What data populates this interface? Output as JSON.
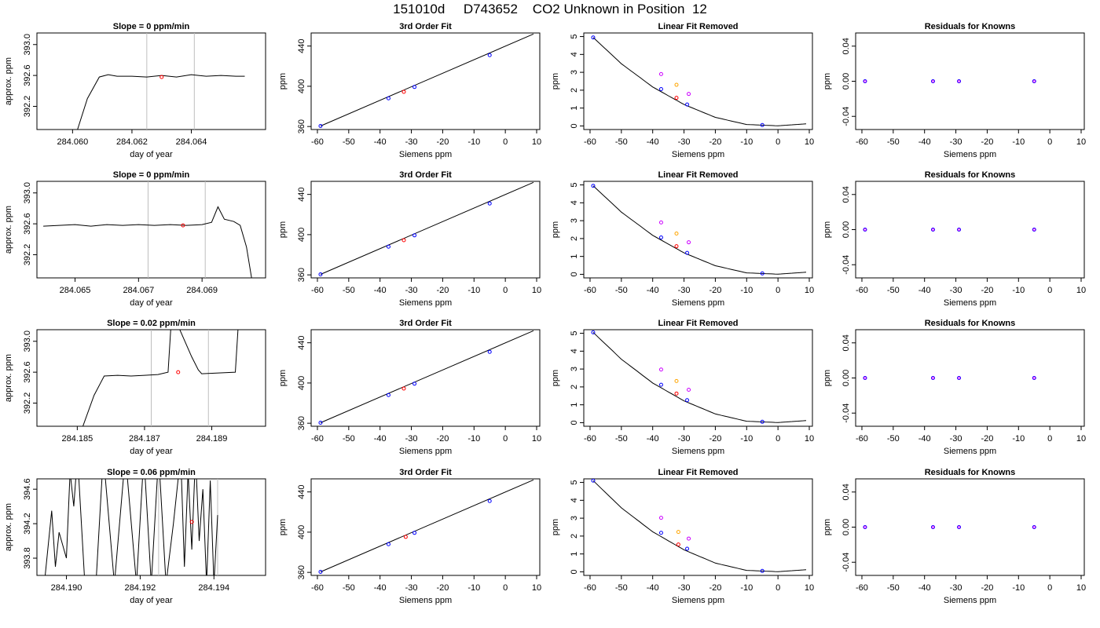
{
  "page_title": "151010d     D743652    CO2 Unknown in Position  12",
  "colors": {
    "standard": "#0000ff",
    "unknown": "#ff0000",
    "high": "#cc00ff",
    "low": "#ffa500",
    "guide": "#bebebe",
    "line": "#000000"
  },
  "chart_data": [
    {
      "type": "line",
      "row": 0,
      "kind": "trace",
      "title": "Slope =  0  ppm/min",
      "xlabel": "day of year",
      "ylabel": "approx. ppm",
      "xlim": [
        284.0588,
        284.0665
      ],
      "ylim": [
        391.9,
        393.15
      ],
      "xticks": [
        284.06,
        284.062,
        284.064
      ],
      "xticklabels": [
        "284.060",
        "284.062",
        "284.064"
      ],
      "yticks": [
        392.2,
        392.6,
        393.0
      ],
      "yticklabels": [
        "392.2",
        "392.6",
        "393.0"
      ],
      "vlines": [
        284.0625,
        284.0641
      ],
      "x": [
        284.06,
        284.0605,
        284.0609,
        284.0612,
        284.0615,
        284.062,
        284.0625,
        284.063,
        284.0635,
        284.064,
        284.0645,
        284.065,
        284.0655,
        284.0658
      ],
      "y": [
        391.7,
        392.3,
        392.58,
        392.61,
        392.59,
        392.59,
        392.58,
        392.6,
        392.58,
        392.61,
        392.59,
        392.6,
        392.59,
        392.59
      ],
      "marker": {
        "x": 284.063,
        "y": 392.58
      }
    },
    {
      "type": "scatter",
      "row": 0,
      "kind": "fit",
      "title": "3rd Order Fit",
      "xlabel": "Siemens ppm",
      "ylabel": "ppm",
      "xlim": [
        -62,
        11
      ],
      "ylim": [
        357,
        453
      ],
      "xticks": [
        -60,
        -50,
        -40,
        -30,
        -20,
        -10,
        0,
        10
      ],
      "yticks": [
        360,
        400,
        440
      ],
      "yticklabels": [
        "360",
        "400",
        "440"
      ],
      "line": {
        "x": [
          -59,
          9
        ],
        "y": [
          360.5,
          452
        ]
      },
      "standards": {
        "x": [
          -59,
          -37.3,
          -29,
          -5
        ],
        "y": [
          360.5,
          388,
          399.3,
          431
        ]
      },
      "unknown": {
        "x": [
          -32.4
        ],
        "y": [
          394.5
        ]
      }
    },
    {
      "type": "scatter",
      "row": 0,
      "kind": "removed",
      "title": "Linear Fit Removed",
      "xlabel": "Siemens ppm",
      "ylabel": "ppm",
      "xlim": [
        -62,
        11
      ],
      "ylim": [
        -0.2,
        5.2
      ],
      "xticks": [
        -60,
        -50,
        -40,
        -30,
        -20,
        -10,
        0,
        10
      ],
      "yticks": [
        0,
        1,
        2,
        3,
        4,
        5
      ],
      "yticklabels": [
        "0",
        "1",
        "2",
        "3",
        "4",
        "5"
      ],
      "curve": {
        "x": [
          -59,
          -50,
          -40,
          -30,
          -20,
          -10,
          0,
          9
        ],
        "y": [
          4.95,
          3.48,
          2.18,
          1.2,
          0.48,
          0.08,
          0.01,
          0.12
        ]
      },
      "standards": {
        "x": [
          -59,
          -37.3,
          -29,
          -5
        ],
        "y": [
          4.95,
          2.06,
          1.2,
          0.05
        ]
      },
      "unknown": {
        "x": [
          -32.4
        ],
        "y": [
          1.57
        ]
      },
      "high": {
        "x": [
          -37.3,
          -28.5
        ],
        "y": [
          2.9,
          1.79
        ]
      },
      "low": {
        "x": [
          -32.4
        ],
        "y": [
          2.3
        ]
      }
    },
    {
      "type": "scatter",
      "row": 0,
      "kind": "residuals",
      "title": "Residuals for Knowns",
      "xlabel": "Siemens ppm",
      "ylabel": "ppm",
      "xlim": [
        -62,
        11
      ],
      "ylim": [
        -0.055,
        0.055
      ],
      "xticks": [
        -60,
        -50,
        -40,
        -30,
        -20,
        -10,
        0,
        10
      ],
      "yticks": [
        -0.04,
        0.0,
        0.04
      ],
      "yticklabels": [
        "-0.04",
        "0.00",
        "0.04"
      ],
      "points": {
        "x": [
          -59,
          -37.3,
          -29,
          -5
        ],
        "y": [
          0,
          0,
          0,
          0
        ]
      }
    },
    {
      "type": "line",
      "row": 1,
      "kind": "trace",
      "title": "Slope =  0  ppm/min",
      "xlabel": "day of year",
      "ylabel": "approx. ppm",
      "xlim": [
        284.0638,
        284.071
      ],
      "ylim": [
        391.9,
        393.15
      ],
      "xticks": [
        284.065,
        284.067,
        284.069
      ],
      "xticklabels": [
        "284.065",
        "284.067",
        "284.069"
      ],
      "yticks": [
        392.2,
        392.6,
        393.0
      ],
      "yticklabels": [
        "392.2",
        "392.6",
        "393.0"
      ],
      "vlines": [
        284.0673,
        284.0691
      ],
      "x": [
        284.064,
        284.0645,
        284.065,
        284.0655,
        284.066,
        284.0665,
        284.067,
        284.0675,
        284.068,
        284.0685,
        284.069,
        284.0693,
        284.0695,
        284.0697,
        284.07,
        284.0702,
        284.0704,
        284.0706
      ],
      "y": [
        392.57,
        392.58,
        392.59,
        392.57,
        392.59,
        392.58,
        392.59,
        392.58,
        392.59,
        392.58,
        392.59,
        392.62,
        392.82,
        392.66,
        392.63,
        392.58,
        392.3,
        391.8
      ],
      "marker": {
        "x": 284.0684,
        "y": 392.58
      }
    },
    {
      "type": "scatter",
      "row": 1,
      "kind": "fit",
      "title": "3rd Order Fit",
      "xlabel": "Siemens ppm",
      "ylabel": "ppm",
      "xlim": [
        -62,
        11
      ],
      "ylim": [
        357,
        453
      ],
      "xticks": [
        -60,
        -50,
        -40,
        -30,
        -20,
        -10,
        0,
        10
      ],
      "yticks": [
        360,
        400,
        440
      ],
      "yticklabels": [
        "360",
        "400",
        "440"
      ],
      "line": {
        "x": [
          -59,
          9
        ],
        "y": [
          360.5,
          452
        ]
      },
      "standards": {
        "x": [
          -59,
          -37.3,
          -29,
          -5
        ],
        "y": [
          360.5,
          388,
          399.3,
          431
        ]
      },
      "unknown": {
        "x": [
          -32.4
        ],
        "y": [
          394.5
        ]
      }
    },
    {
      "type": "scatter",
      "row": 1,
      "kind": "removed",
      "title": "Linear Fit Removed",
      "xlabel": "Siemens ppm",
      "ylabel": "ppm",
      "xlim": [
        -62,
        11
      ],
      "ylim": [
        -0.2,
        5.2
      ],
      "xticks": [
        -60,
        -50,
        -40,
        -30,
        -20,
        -10,
        0,
        10
      ],
      "yticks": [
        0,
        1,
        2,
        3,
        4,
        5
      ],
      "yticklabels": [
        "0",
        "1",
        "2",
        "3",
        "4",
        "5"
      ],
      "curve": {
        "x": [
          -59,
          -50,
          -40,
          -30,
          -20,
          -10,
          0,
          9
        ],
        "y": [
          4.95,
          3.48,
          2.18,
          1.2,
          0.48,
          0.08,
          0.01,
          0.12
        ]
      },
      "standards": {
        "x": [
          -59,
          -37.3,
          -29,
          -5
        ],
        "y": [
          4.95,
          2.06,
          1.2,
          0.05
        ]
      },
      "unknown": {
        "x": [
          -32.4
        ],
        "y": [
          1.57
        ]
      },
      "high": {
        "x": [
          -37.3,
          -28.5
        ],
        "y": [
          2.9,
          1.79
        ]
      },
      "low": {
        "x": [
          -32.4
        ],
        "y": [
          2.28
        ]
      }
    },
    {
      "type": "scatter",
      "row": 1,
      "kind": "residuals",
      "title": "Residuals for Knowns",
      "xlabel": "Siemens ppm",
      "ylabel": "ppm",
      "xlim": [
        -62,
        11
      ],
      "ylim": [
        -0.055,
        0.055
      ],
      "xticks": [
        -60,
        -50,
        -40,
        -30,
        -20,
        -10,
        0,
        10
      ],
      "yticks": [
        -0.04,
        0.0,
        0.04
      ],
      "yticklabels": [
        "-0.04",
        "0.00",
        "0.04"
      ],
      "points": {
        "x": [
          -59,
          -37.3,
          -29,
          -5
        ],
        "y": [
          0,
          0,
          0,
          0
        ]
      }
    },
    {
      "type": "line",
      "row": 2,
      "kind": "trace",
      "title": "Slope =  0.02  ppm/min",
      "xlabel": "day of year",
      "ylabel": "approx. ppm",
      "xlim": [
        284.1838,
        284.1906
      ],
      "ylim": [
        391.9,
        393.15
      ],
      "xticks": [
        284.185,
        284.187,
        284.189
      ],
      "xticklabels": [
        "284.185",
        "284.187",
        "284.189"
      ],
      "yticks": [
        392.2,
        392.6,
        393.0
      ],
      "yticklabels": [
        "392.2",
        "392.6",
        "393.0"
      ],
      "vlines": [
        284.1872,
        284.1889
      ],
      "x": [
        284.185,
        284.1855,
        284.1858,
        284.1862,
        284.1866,
        284.187,
        284.1874,
        284.1877,
        284.1878,
        284.188,
        284.1884,
        284.1886,
        284.1887,
        284.1892,
        284.1897,
        284.1898
      ],
      "y": [
        391.7,
        392.3,
        392.55,
        392.56,
        392.55,
        392.56,
        392.57,
        392.6,
        393.3,
        393.2,
        392.8,
        392.63,
        392.58,
        392.59,
        392.6,
        393.3
      ],
      "marker": {
        "x": 284.188,
        "y": 392.6
      }
    },
    {
      "type": "scatter",
      "row": 2,
      "kind": "fit",
      "title": "3rd Order Fit",
      "xlabel": "Siemens ppm",
      "ylabel": "ppm",
      "xlim": [
        -62,
        11
      ],
      "ylim": [
        357,
        453
      ],
      "xticks": [
        -60,
        -50,
        -40,
        -30,
        -20,
        -10,
        0,
        10
      ],
      "yticks": [
        360,
        400,
        440
      ],
      "yticklabels": [
        "360",
        "400",
        "440"
      ],
      "line": {
        "x": [
          -59,
          9
        ],
        "y": [
          360.5,
          452
        ]
      },
      "standards": {
        "x": [
          -59,
          -37.3,
          -29,
          -5
        ],
        "y": [
          360.5,
          388,
          399.3,
          431
        ]
      },
      "unknown": {
        "x": [
          -32.4
        ],
        "y": [
          394.5
        ]
      }
    },
    {
      "type": "scatter",
      "row": 2,
      "kind": "removed",
      "title": "Linear Fit Removed",
      "xlabel": "Siemens ppm",
      "ylabel": "ppm",
      "xlim": [
        -62,
        11
      ],
      "ylim": [
        -0.2,
        5.2
      ],
      "xticks": [
        -60,
        -50,
        -40,
        -30,
        -20,
        -10,
        0,
        10
      ],
      "yticks": [
        0,
        1,
        2,
        3,
        4,
        5
      ],
      "yticklabels": [
        "0",
        "1",
        "2",
        "3",
        "4",
        "5"
      ],
      "curve": {
        "x": [
          -59,
          -50,
          -40,
          -30,
          -20,
          -10,
          0,
          9
        ],
        "y": [
          5.05,
          3.55,
          2.22,
          1.22,
          0.49,
          0.08,
          0.01,
          0.12
        ]
      },
      "standards": {
        "x": [
          -59,
          -37.3,
          -29,
          -5
        ],
        "y": [
          5.05,
          2.12,
          1.26,
          0.05
        ]
      },
      "unknown": {
        "x": [
          -32.4
        ],
        "y": [
          1.63
        ]
      },
      "high": {
        "x": [
          -37.3,
          -28.5
        ],
        "y": [
          2.97,
          1.84
        ]
      },
      "low": {
        "x": [
          -32.4
        ],
        "y": [
          2.33
        ]
      }
    },
    {
      "type": "scatter",
      "row": 2,
      "kind": "residuals",
      "title": "Residuals for Knowns",
      "xlabel": "Siemens ppm",
      "ylabel": "ppm",
      "xlim": [
        -62,
        11
      ],
      "ylim": [
        -0.055,
        0.055
      ],
      "xticks": [
        -60,
        -50,
        -40,
        -30,
        -20,
        -10,
        0,
        10
      ],
      "yticks": [
        -0.04,
        0.0,
        0.04
      ],
      "yticklabels": [
        "-0.04",
        "0.00",
        "0.04"
      ],
      "points": {
        "x": [
          -59,
          -37.3,
          -29,
          -5
        ],
        "y": [
          0,
          0,
          0,
          0
        ]
      }
    },
    {
      "type": "line",
      "row": 3,
      "kind": "trace",
      "title": "Slope =  0.06  ppm/min",
      "xlabel": "day of year",
      "ylabel": "approx. ppm",
      "xlim": [
        284.1892,
        284.1954
      ],
      "ylim": [
        393.6,
        394.72
      ],
      "xticks": [
        284.19,
        284.192,
        284.194
      ],
      "xticklabels": [
        "284.190",
        "284.192",
        "284.194"
      ],
      "yticks": [
        393.8,
        394.2,
        394.6
      ],
      "yticklabels": [
        "393.8",
        "394.2",
        "394.6"
      ],
      "vlines": [
        284.1925,
        284.1941
      ],
      "x": [
        284.1894,
        284.1896,
        284.1897,
        284.1898,
        284.19,
        284.1901,
        284.1902,
        284.1903,
        284.1905,
        284.1908,
        284.191,
        284.1913,
        284.1916,
        284.1919,
        284.1921,
        284.1923,
        284.1925,
        284.1927,
        284.1929,
        284.1931,
        284.1932,
        284.1933,
        284.1934,
        284.1935,
        284.1936,
        284.1937,
        284.1938,
        284.1939,
        284.194,
        284.1941
      ],
      "y": [
        393.5,
        394.35,
        393.7,
        394.1,
        393.8,
        394.8,
        394.4,
        395.0,
        393.5,
        393.5,
        395.0,
        393.5,
        395.0,
        393.5,
        395.0,
        393.5,
        395.0,
        393.5,
        394.2,
        395.0,
        393.7,
        394.8,
        393.9,
        395.0,
        394.0,
        394.6,
        393.5,
        394.7,
        393.5,
        394.3
      ],
      "marker": {
        "x": 284.1934,
        "y": 394.22
      }
    },
    {
      "type": "scatter",
      "row": 3,
      "kind": "fit",
      "title": "3rd Order Fit",
      "xlabel": "Siemens ppm",
      "ylabel": "ppm",
      "xlim": [
        -62,
        11
      ],
      "ylim": [
        357,
        453
      ],
      "xticks": [
        -60,
        -50,
        -40,
        -30,
        -20,
        -10,
        0,
        10
      ],
      "yticks": [
        360,
        400,
        440
      ],
      "yticklabels": [
        "360",
        "400",
        "440"
      ],
      "line": {
        "x": [
          -59,
          9
        ],
        "y": [
          360.5,
          452
        ]
      },
      "standards": {
        "x": [
          -59,
          -37.3,
          -29,
          -5
        ],
        "y": [
          360.5,
          388,
          399.3,
          431
        ]
      },
      "unknown": {
        "x": [
          -31.8
        ],
        "y": [
          395.3
        ]
      }
    },
    {
      "type": "scatter",
      "row": 3,
      "kind": "removed",
      "title": "Linear Fit Removed",
      "xlabel": "Siemens ppm",
      "ylabel": "ppm",
      "xlim": [
        -62,
        11
      ],
      "ylim": [
        -0.2,
        5.2
      ],
      "xticks": [
        -60,
        -50,
        -40,
        -30,
        -20,
        -10,
        0,
        10
      ],
      "yticks": [
        0,
        1,
        2,
        3,
        4,
        5
      ],
      "yticklabels": [
        "0",
        "1",
        "2",
        "3",
        "4",
        "5"
      ],
      "curve": {
        "x": [
          -59,
          -50,
          -40,
          -30,
          -20,
          -10,
          0,
          9
        ],
        "y": [
          5.1,
          3.58,
          2.24,
          1.23,
          0.49,
          0.08,
          0.01,
          0.12
        ]
      },
      "standards": {
        "x": [
          -59,
          -37.3,
          -29,
          -5
        ],
        "y": [
          5.1,
          2.18,
          1.29,
          0.05
        ]
      },
      "unknown": {
        "x": [
          -31.8
        ],
        "y": [
          1.53
        ]
      },
      "high": {
        "x": [
          -37.3,
          -28.5
        ],
        "y": [
          3.02,
          1.86
        ]
      },
      "low": {
        "x": [
          -31.8
        ],
        "y": [
          2.23
        ]
      }
    },
    {
      "type": "scatter",
      "row": 3,
      "kind": "residuals",
      "title": "Residuals for Knowns",
      "xlabel": "Siemens ppm",
      "ylabel": "ppm",
      "xlim": [
        -62,
        11
      ],
      "ylim": [
        -0.055,
        0.055
      ],
      "xticks": [
        -60,
        -50,
        -40,
        -30,
        -20,
        -10,
        0,
        10
      ],
      "yticks": [
        -0.04,
        0.0,
        0.04
      ],
      "yticklabels": [
        "-0.04",
        "0.00",
        "0.04"
      ],
      "points": {
        "x": [
          -59,
          -37.3,
          -29,
          -5
        ],
        "y": [
          0,
          0,
          0,
          0
        ]
      }
    }
  ]
}
